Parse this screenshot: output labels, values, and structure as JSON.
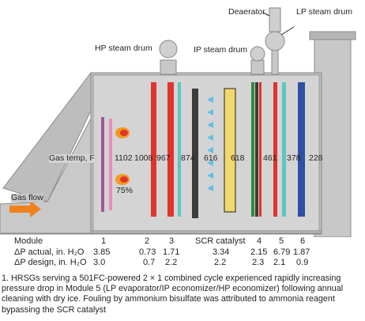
{
  "labels": {
    "deaerator": "Deaerator",
    "lp_drum": "LP steam drum",
    "hp_drum": "HP steam drum",
    "ip_drum": "IP steam drum",
    "gas_temp": "Gas temp, F",
    "scr_catalyst": "SCR catalyst",
    "gas_flow": "Gas flow",
    "percent": "75%"
  },
  "gas_temps": [
    "1102",
    "1008",
    "967",
    "874",
    "616",
    "618",
    "461",
    "378",
    "228"
  ],
  "table": {
    "header_label": "Module",
    "row_actual_label": "ΔP actual, in. H₂O",
    "row_design_label": "ΔP design, in. H₂O",
    "columns": [
      {
        "module": "1",
        "actual": "3.85",
        "design": "3.0"
      },
      {
        "module": "2",
        "actual": "0.73",
        "design": "0.7"
      },
      {
        "module": "3",
        "actual": "1.71",
        "design": "2.2"
      },
      {
        "module": "SCR catalyst",
        "actual": "3.34",
        "design": "2.2"
      },
      {
        "module": "4",
        "actual": "2.15",
        "design": "2.3"
      },
      {
        "module": "5",
        "actual": "6.79",
        "design": "2.1"
      },
      {
        "module": "6",
        "actual": "1.87",
        "design": "0.9"
      }
    ]
  },
  "caption": "1. HRSGs serving a 501FC-powered 2 × 1 combined cycle experienced rapidly increasing pressure drop in Module 5 (LP evaporator/IP economizer/HP economizer) following annual cleaning with dry ice. Fouling by ammonium bisulfate was attributed to ammonia reagent bypassing the SCR catalyst",
  "colors": {
    "casing": "#bdbdbd",
    "casing_edge": "#8a8a8a",
    "gas_flow_arrow": "#f0821e",
    "flame": "#f39a1e",
    "ammonia_arrow": "#5fc0e6",
    "module_red": "#e0332b",
    "module_purple": "#a3559f",
    "module_pink": "#e98ab7",
    "module_teal": "#5ec6c0",
    "module_charcoal": "#3c3c3c",
    "module_gold": "#f1d86a",
    "module_green": "#2e8b3c",
    "module_blue": "#2f4fa3"
  }
}
